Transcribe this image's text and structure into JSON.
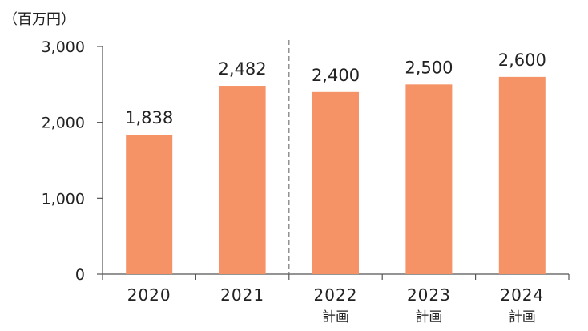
{
  "chart_data": {
    "type": "bar",
    "unit_label": "（百万円）",
    "categories": [
      "2020",
      "2021",
      "2022",
      "2023",
      "2024"
    ],
    "category_sublabels": [
      "",
      "",
      "計画",
      "計画",
      "計画"
    ],
    "values": [
      1838,
      2482,
      2400,
      2500,
      2600
    ],
    "value_labels": [
      "1,838",
      "2,482",
      "2,400",
      "2,500",
      "2,600"
    ],
    "yticks": [
      {
        "value": 0,
        "label": "0"
      },
      {
        "value": 1000,
        "label": "1,000"
      },
      {
        "value": 2000,
        "label": "2,000"
      },
      {
        "value": 3000,
        "label": "3,000"
      }
    ],
    "ylim": [
      0,
      3000
    ],
    "grid": false,
    "divider_after_category": "2021",
    "bar_color": "#F59366",
    "axis_color": "#555555"
  }
}
